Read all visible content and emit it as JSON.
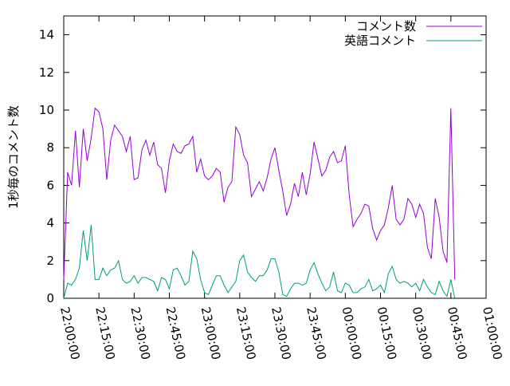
{
  "chart_data": {
    "type": "line",
    "ylabel": "1秒毎のコメント数",
    "x": [
      "22:00:00",
      "22:01:40",
      "22:03:20",
      "22:05:00",
      "22:06:40",
      "22:08:20",
      "22:10:00",
      "22:11:40",
      "22:13:20",
      "22:15:00",
      "22:16:40",
      "22:18:20",
      "22:20:00",
      "22:21:40",
      "22:23:20",
      "22:25:00",
      "22:26:40",
      "22:28:20",
      "22:30:00",
      "22:31:40",
      "22:33:20",
      "22:35:00",
      "22:36:40",
      "22:38:20",
      "22:40:00",
      "22:41:40",
      "22:43:20",
      "22:45:00",
      "22:46:40",
      "22:48:20",
      "22:50:00",
      "22:51:40",
      "22:53:20",
      "22:55:00",
      "22:56:40",
      "22:58:20",
      "23:00:00",
      "23:01:40",
      "23:03:20",
      "23:05:00",
      "23:06:40",
      "23:08:20",
      "23:10:00",
      "23:11:40",
      "23:13:20",
      "23:15:00",
      "23:16:40",
      "23:18:20",
      "23:20:00",
      "23:21:40",
      "23:23:20",
      "23:25:00",
      "23:26:40",
      "23:28:20",
      "23:30:00",
      "23:31:40",
      "23:33:20",
      "23:35:00",
      "23:36:40",
      "23:38:20",
      "23:40:00",
      "23:41:40",
      "23:43:20",
      "23:45:00",
      "23:46:40",
      "23:48:20",
      "23:50:00",
      "23:51:40",
      "23:53:20",
      "23:55:00",
      "23:56:40",
      "23:58:20",
      "00:00:00",
      "00:01:40",
      "00:03:20",
      "00:05:00",
      "00:06:40",
      "00:08:20",
      "00:10:00",
      "00:11:40",
      "00:13:20",
      "00:15:00",
      "00:16:40",
      "00:18:20",
      "00:20:00",
      "00:21:40",
      "00:23:20",
      "00:25:00",
      "00:26:40",
      "00:28:20",
      "00:30:00",
      "00:31:40",
      "00:33:20",
      "00:35:00",
      "00:36:40",
      "00:38:20",
      "00:40:00",
      "00:41:40",
      "00:43:20",
      "00:45:00",
      "00:46:40"
    ],
    "series": [
      {
        "name": "コメント数",
        "color": "#9400d3",
        "values": [
          1.0,
          6.7,
          6.0,
          8.9,
          5.9,
          9.0,
          7.3,
          8.5,
          10.1,
          9.9,
          9.0,
          6.3,
          8.4,
          9.2,
          8.9,
          8.6,
          7.8,
          8.6,
          6.3,
          6.4,
          7.9,
          8.4,
          7.6,
          8.3,
          7.1,
          6.9,
          5.6,
          7.3,
          8.2,
          7.8,
          7.7,
          8.1,
          8.2,
          8.6,
          6.7,
          7.4,
          6.5,
          6.3,
          6.5,
          6.9,
          6.7,
          5.1,
          5.9,
          6.2,
          9.1,
          8.7,
          7.6,
          7.2,
          5.4,
          5.8,
          6.2,
          5.7,
          6.4,
          7.4,
          8.0,
          6.8,
          5.7,
          4.4,
          5.0,
          6.1,
          5.4,
          6.7,
          5.5,
          6.6,
          8.3,
          7.4,
          6.5,
          6.8,
          7.5,
          7.8,
          7.2,
          7.3,
          8.1,
          5.5,
          3.8,
          4.2,
          4.5,
          5.0,
          4.9,
          3.7,
          3.1,
          3.6,
          3.9,
          4.8,
          6.0,
          4.2,
          3.9,
          4.2,
          5.3,
          5.0,
          4.3,
          5.0,
          4.5,
          2.7,
          2.1,
          5.3,
          4.3,
          2.5,
          1.9,
          10.1,
          1.0
        ]
      },
      {
        "name": "英語コメント",
        "color": "#009e73",
        "values": [
          0.0,
          0.8,
          0.7,
          1.0,
          1.6,
          3.6,
          2.0,
          3.9,
          1.0,
          1.0,
          1.6,
          1.2,
          1.5,
          1.6,
          2.0,
          1.0,
          0.8,
          0.9,
          1.2,
          0.8,
          1.1,
          1.1,
          1.0,
          0.9,
          0.4,
          1.1,
          1.0,
          0.5,
          1.5,
          1.6,
          1.2,
          0.7,
          0.9,
          2.5,
          2.1,
          1.0,
          0.3,
          0.2,
          0.7,
          1.2,
          1.2,
          0.7,
          0.3,
          0.6,
          0.9,
          2.0,
          2.3,
          1.4,
          1.1,
          0.9,
          1.2,
          1.2,
          1.5,
          2.1,
          2.1,
          1.4,
          0.2,
          0.1,
          0.5,
          0.8,
          0.8,
          0.7,
          0.8,
          1.5,
          1.9,
          1.3,
          0.8,
          0.4,
          0.6,
          1.4,
          0.4,
          0.3,
          0.8,
          0.7,
          0.3,
          0.3,
          0.5,
          0.6,
          1.0,
          0.4,
          0.5,
          0.7,
          0.3,
          1.3,
          1.7,
          1.0,
          0.8,
          0.9,
          0.8,
          0.6,
          0.8,
          0.4,
          1.0,
          0.6,
          0.3,
          0.2,
          0.9,
          0.4,
          0.1,
          1.0,
          0.0
        ]
      }
    ],
    "xlim": [
      "22:00:00",
      "01:00:00"
    ],
    "xticks": [
      "22:00:00",
      "22:15:00",
      "22:30:00",
      "22:45:00",
      "23:00:00",
      "23:15:00",
      "23:30:00",
      "23:45:00",
      "00:00:00",
      "00:15:00",
      "00:30:00",
      "00:45:00",
      "01:00:00"
    ],
    "ylim": [
      0,
      15
    ],
    "yticks": [
      0,
      2,
      4,
      6,
      8,
      10,
      12,
      14
    ],
    "legend": "top-right"
  }
}
